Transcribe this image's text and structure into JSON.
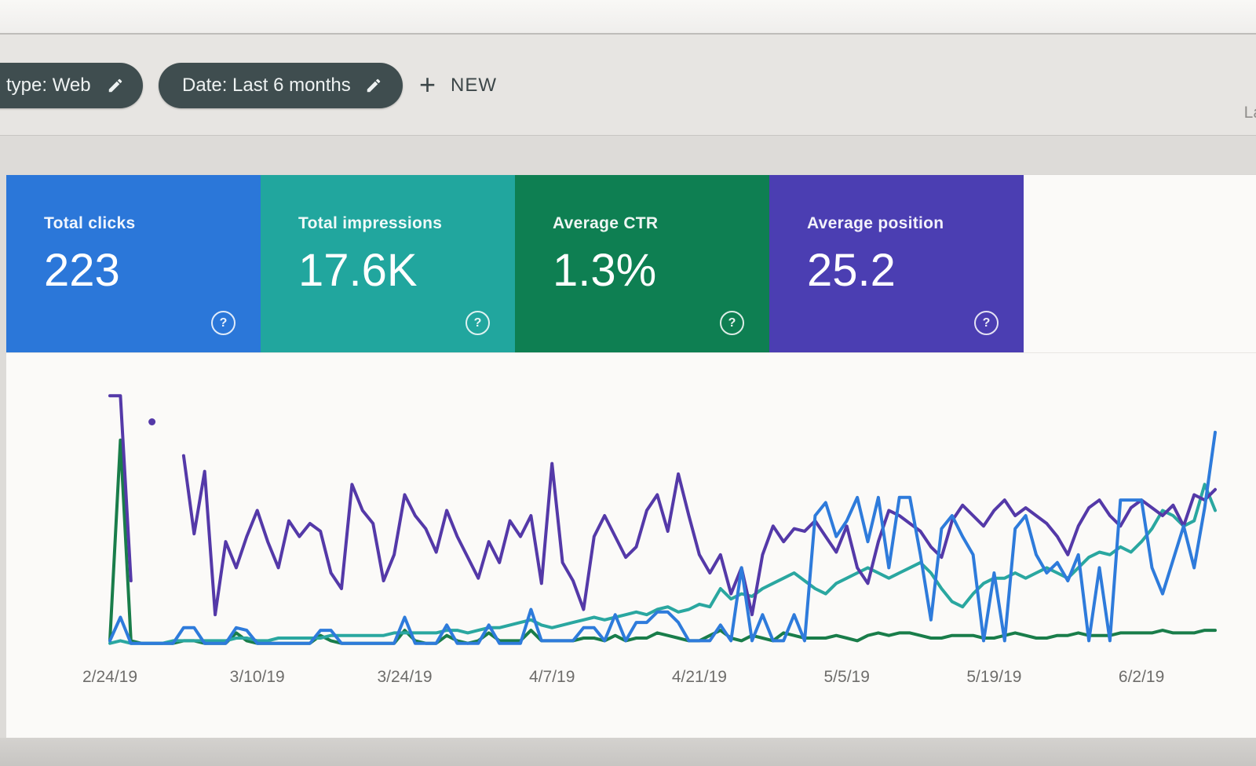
{
  "toolbar": {
    "chips": [
      {
        "label": "type: Web"
      },
      {
        "label": "Date: Last 6 months"
      }
    ],
    "new_button_label": "NEW",
    "top_right_partial_text": "La"
  },
  "icons": {
    "plus": "+",
    "help": "?",
    "edit": "pencil"
  },
  "metric_cards": [
    {
      "label": "Total clicks",
      "value": "223",
      "color": "#2b77d9"
    },
    {
      "label": "Total impressions",
      "value": "17.6K",
      "color": "#21a69e"
    },
    {
      "label": "Average CTR",
      "value": "1.3%",
      "color": "#0e7f52"
    },
    {
      "label": "Average position",
      "value": "25.2",
      "color": "#4b3eb2"
    }
  ],
  "chart_data": {
    "type": "line",
    "x_unit": "day",
    "x_range": [
      "2/24/19",
      "6/9/19"
    ],
    "x_ticks": [
      {
        "index": 0,
        "label": "2/24/19"
      },
      {
        "index": 14,
        "label": "3/10/19"
      },
      {
        "index": 28,
        "label": "3/24/19"
      },
      {
        "index": 42,
        "label": "4/7/19"
      },
      {
        "index": 56,
        "label": "4/21/19"
      },
      {
        "index": 70,
        "label": "5/5/19"
      },
      {
        "index": 84,
        "label": "5/19/19"
      },
      {
        "index": 98,
        "label": "6/2/19"
      }
    ],
    "y_axis_note": "no y axis shown in UI; values estimated as percent of plot height (0=baseline,100=top)",
    "grid": false,
    "legend": "none (series colors match metric cards)",
    "series": [
      {
        "name": "Total clicks",
        "color": "#2e7bdb",
        "values": [
          2,
          11,
          1,
          1,
          1,
          1,
          1,
          7,
          7,
          1,
          1,
          1,
          7,
          6,
          1,
          1,
          1,
          1,
          1,
          1,
          6,
          6,
          1,
          1,
          1,
          1,
          1,
          1,
          11,
          1,
          1,
          1,
          8,
          1,
          1,
          1,
          8,
          1,
          1,
          1,
          14,
          2,
          2,
          2,
          2,
          7,
          7,
          2,
          12,
          2,
          9,
          9,
          13,
          13,
          9,
          2,
          2,
          2,
          8,
          2,
          30,
          2,
          12,
          2,
          2,
          12,
          2,
          50,
          55,
          42,
          48,
          57,
          40,
          57,
          30,
          57,
          57,
          35,
          10,
          45,
          50,
          42,
          35,
          2,
          28,
          2,
          45,
          50,
          35,
          28,
          32,
          25,
          35,
          2,
          30,
          2,
          56,
          56,
          56,
          30,
          20,
          33,
          46,
          30,
          53,
          82
        ]
      },
      {
        "name": "Total impressions",
        "color": "#2aa7a0",
        "values": [
          1,
          2,
          1,
          1,
          1,
          1,
          2,
          2,
          2,
          2,
          2,
          2,
          3,
          3,
          2,
          2,
          3,
          3,
          3,
          3,
          3,
          4,
          4,
          4,
          4,
          4,
          4,
          5,
          5,
          5,
          5,
          5,
          6,
          6,
          5,
          6,
          7,
          7,
          8,
          9,
          10,
          8,
          7,
          8,
          9,
          10,
          11,
          10,
          11,
          12,
          13,
          12,
          14,
          15,
          13,
          14,
          16,
          15,
          22,
          18,
          20,
          19,
          22,
          24,
          26,
          28,
          25,
          22,
          20,
          24,
          26,
          28,
          30,
          28,
          26,
          28,
          30,
          32,
          28,
          22,
          17,
          15,
          20,
          24,
          26,
          26,
          28,
          26,
          28,
          30,
          28,
          26,
          30,
          34,
          36,
          35,
          38,
          36,
          40,
          45,
          52,
          50,
          46,
          48,
          62,
          52
        ]
      },
      {
        "name": "Average CTR",
        "color": "#197d4a",
        "values": [
          2,
          79,
          2,
          1,
          1,
          1,
          1,
          2,
          2,
          1,
          1,
          1,
          5,
          2,
          1,
          1,
          1,
          1,
          1,
          1,
          4,
          2,
          1,
          1,
          1,
          1,
          1,
          1,
          6,
          2,
          1,
          1,
          4,
          2,
          1,
          2,
          5,
          2,
          2,
          2,
          6,
          2,
          2,
          2,
          2,
          3,
          3,
          2,
          4,
          2,
          3,
          3,
          5,
          4,
          3,
          2,
          2,
          4,
          6,
          3,
          2,
          4,
          3,
          2,
          5,
          4,
          3,
          3,
          3,
          4,
          3,
          2,
          4,
          5,
          4,
          5,
          5,
          4,
          3,
          3,
          4,
          4,
          4,
          3,
          3,
          4,
          5,
          4,
          3,
          3,
          4,
          4,
          5,
          4,
          4,
          4,
          5,
          5,
          5,
          5,
          6,
          5,
          5,
          5,
          6,
          6
        ]
      },
      {
        "name": "Average position",
        "color": "#5439a8",
        "values": [
          96,
          96,
          25,
          null,
          86,
          null,
          null,
          73,
          43,
          67,
          12,
          40,
          30,
          42,
          52,
          40,
          30,
          48,
          42,
          47,
          44,
          28,
          22,
          62,
          52,
          47,
          25,
          35,
          58,
          50,
          45,
          36,
          52,
          42,
          34,
          26,
          40,
          32,
          48,
          42,
          50,
          24,
          70,
          32,
          25,
          14,
          42,
          50,
          42,
          34,
          38,
          52,
          58,
          44,
          66,
          50,
          35,
          28,
          35,
          20,
          30,
          12,
          35,
          46,
          40,
          45,
          44,
          48,
          42,
          36,
          46,
          30,
          24,
          40,
          52,
          50,
          47,
          44,
          38,
          34,
          48,
          54,
          50,
          46,
          52,
          56,
          50,
          53,
          50,
          47,
          42,
          35,
          46,
          53,
          56,
          50,
          46,
          53,
          56,
          53,
          50,
          54,
          46,
          58,
          56,
          60
        ]
      }
    ]
  }
}
